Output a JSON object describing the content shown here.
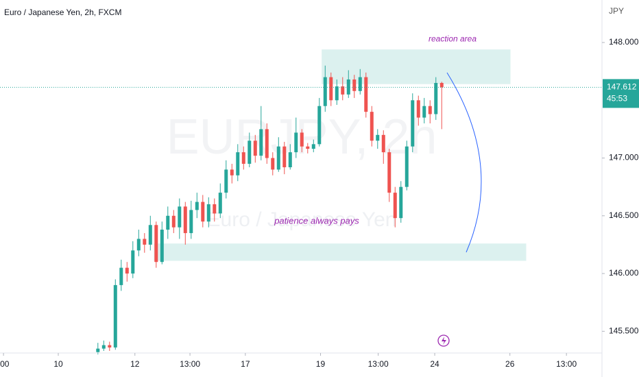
{
  "chart_data": {
    "type": "candlestick",
    "title": "Euro / Japanese Yen, 2h, FXCM",
    "watermark": "EURJPY, 2h",
    "watermark_sub": "Euro / Japanese Yen",
    "y_unit": "JPY",
    "countdown": "45:53",
    "up_color": "#26a69a",
    "down_color": "#ef5350",
    "last_price_color": "#26a69a",
    "open": [
      145.32,
      145.35,
      145.38,
      145.36,
      145.9,
      146.05,
      146.0,
      146.2,
      146.3,
      146.25,
      146.42,
      146.1,
      146.38,
      146.5,
      146.4,
      146.58,
      146.35,
      146.55,
      146.62,
      146.45,
      146.6,
      146.52,
      146.7,
      146.9,
      146.85,
      147.05,
      146.95,
      147.15,
      147.02,
      147.25,
      147.0,
      146.9,
      147.1,
      146.92,
      147.05,
      147.22,
      147.1,
      147.08,
      147.12,
      147.45,
      147.7,
      147.5,
      147.62,
      147.55,
      147.68,
      147.58,
      147.7,
      147.4,
      147.15,
      147.2,
      147.05,
      146.7,
      146.48,
      146.75,
      147.1,
      147.5,
      147.35,
      147.45,
      147.38,
      147.65
    ],
    "high": [
      145.4,
      145.42,
      145.41,
      145.95,
      146.12,
      146.1,
      146.28,
      146.38,
      146.35,
      146.5,
      146.45,
      146.45,
      146.58,
      146.55,
      146.65,
      146.62,
      146.63,
      146.7,
      146.68,
      146.66,
      146.65,
      146.78,
      146.98,
      146.95,
      147.12,
      147.1,
      147.22,
      147.2,
      147.45,
      147.3,
      147.05,
      147.18,
      147.14,
      147.12,
      147.35,
      147.25,
      147.13,
      147.16,
      147.52,
      147.8,
      147.74,
      147.68,
      147.7,
      147.76,
      147.72,
      147.77,
      147.74,
      147.45,
      147.25,
      147.24,
      147.08,
      146.75,
      146.8,
      147.15,
      147.56,
      147.54,
      147.52,
      147.5,
      147.7,
      147.66
    ],
    "low": [
      145.3,
      145.33,
      145.33,
      145.34,
      145.85,
      145.93,
      145.96,
      146.15,
      146.18,
      146.2,
      146.05,
      146.08,
      146.3,
      146.35,
      146.3,
      146.25,
      146.3,
      146.48,
      146.4,
      146.4,
      146.45,
      146.48,
      146.65,
      146.78,
      146.8,
      146.9,
      146.92,
      146.96,
      146.98,
      146.95,
      146.85,
      146.88,
      146.86,
      146.9,
      147.0,
      147.05,
      147.04,
      147.05,
      147.1,
      147.4,
      147.45,
      147.46,
      147.5,
      147.52,
      147.52,
      147.55,
      147.35,
      147.1,
      147.08,
      146.95,
      146.62,
      146.4,
      146.44,
      146.72,
      147.05,
      147.28,
      147.3,
      147.3,
      147.33,
      147.25
    ],
    "close": [
      145.35,
      145.38,
      145.36,
      145.9,
      146.05,
      146.0,
      146.2,
      146.3,
      146.25,
      146.42,
      146.1,
      146.38,
      146.5,
      146.4,
      146.58,
      146.35,
      146.55,
      146.62,
      146.45,
      146.6,
      146.52,
      146.7,
      146.9,
      146.85,
      147.05,
      146.95,
      147.15,
      147.02,
      147.25,
      147.0,
      146.9,
      147.1,
      146.92,
      147.05,
      147.22,
      147.1,
      147.08,
      147.12,
      147.45,
      147.7,
      147.5,
      147.62,
      147.55,
      147.68,
      147.58,
      147.7,
      147.4,
      147.15,
      147.2,
      147.05,
      146.7,
      146.48,
      146.75,
      147.1,
      147.5,
      147.35,
      147.45,
      147.38,
      147.65,
      147.612
    ],
    "ylim": [
      145.312,
      148.368
    ],
    "yticks": [
      {
        "value": 145.5,
        "label": "145.500"
      },
      {
        "value": 146,
        "label": "146.000"
      },
      {
        "value": 146.5,
        "label": "146.500"
      },
      {
        "value": 147,
        "label": "147.000"
      },
      {
        "value": 148,
        "label": "148.000"
      }
    ],
    "xlim": [
      -16.8,
      86.5
    ],
    "xticks": [
      {
        "value": -16.2,
        "label": ":00"
      },
      {
        "value": -6.8,
        "label": "10"
      },
      {
        "value": 6.35,
        "label": "12"
      },
      {
        "value": 15.8,
        "label": "13:00"
      },
      {
        "value": 25.3,
        "label": "17"
      },
      {
        "value": 38.2,
        "label": "19"
      },
      {
        "value": 48.1,
        "label": "13:00"
      },
      {
        "value": 57.8,
        "label": "24"
      },
      {
        "value": 70.7,
        "label": "26"
      },
      {
        "value": 80.4,
        "label": "13:00"
      }
    ],
    "zones": [
      {
        "x": [
          38.4,
          70.8
        ],
        "y": [
          147.64,
          147.94
        ],
        "label": "reaction area"
      },
      {
        "x": [
          9.6,
          73.5
        ],
        "y": [
          146.11,
          146.26
        ],
        "label": "patience always pays"
      }
    ]
  }
}
